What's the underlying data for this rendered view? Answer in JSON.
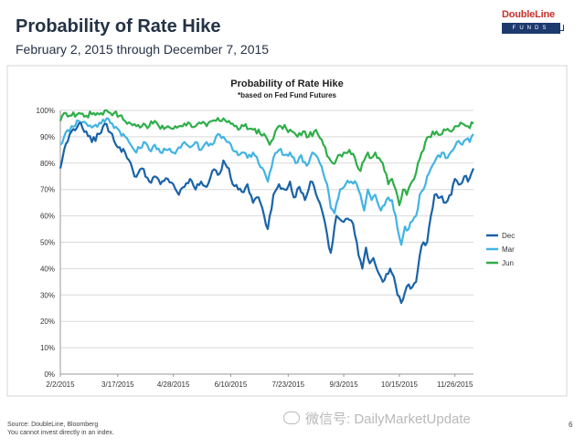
{
  "page": {
    "title": "Probability of Rate Hike",
    "subtitle": "February 2, 2015 through December 7, 2015",
    "logo_top": "DoubleLine",
    "logo_bottom": "FUNDS",
    "source": "Source: DoubleLine, Bloomberg",
    "disclaimer": "You cannot invest directly in an index.",
    "page_number": "6",
    "watermark": "微信号: DailyMarketUpdate"
  },
  "colors": {
    "dec": "#1a63a8",
    "mar": "#41b4e3",
    "jun": "#2fae49"
  },
  "chart_data": {
    "type": "line",
    "title": "Probability of Rate Hike",
    "subtitle": "*based on Fed Fund Futures",
    "xlabel": "",
    "ylabel": "",
    "ylim": [
      0,
      100
    ],
    "y_ticks": [
      "0%",
      "10%",
      "20%",
      "30%",
      "40%",
      "50%",
      "60%",
      "70%",
      "80%",
      "90%",
      "100%"
    ],
    "x_ticks": [
      "2/2/2015",
      "3/17/2015",
      "4/28/2015",
      "6/10/2015",
      "7/23/2015",
      "9/3/2015",
      "10/15/2015",
      "11/26/2015"
    ],
    "x_ticks_index": [
      0,
      31,
      61,
      92,
      123,
      153,
      183,
      213
    ],
    "x_count": 224,
    "grid": true,
    "legend": "right",
    "series": [
      {
        "name": "Dec",
        "key": "dec",
        "anchors": [
          [
            0,
            78
          ],
          [
            2,
            85
          ],
          [
            6,
            92
          ],
          [
            10,
            95
          ],
          [
            14,
            92
          ],
          [
            17,
            88
          ],
          [
            21,
            91
          ],
          [
            24,
            95
          ],
          [
            28,
            91
          ],
          [
            31,
            86
          ],
          [
            35,
            84
          ],
          [
            38,
            80
          ],
          [
            40,
            75
          ],
          [
            44,
            78
          ],
          [
            48,
            73
          ],
          [
            51,
            75
          ],
          [
            54,
            72
          ],
          [
            58,
            74
          ],
          [
            61,
            72
          ],
          [
            64,
            68
          ],
          [
            67,
            71
          ],
          [
            70,
            74
          ],
          [
            73,
            70
          ],
          [
            76,
            73
          ],
          [
            79,
            71
          ],
          [
            82,
            77
          ],
          [
            86,
            76
          ],
          [
            88,
            81
          ],
          [
            91,
            78
          ],
          [
            93,
            72
          ],
          [
            96,
            70
          ],
          [
            99,
            69
          ],
          [
            101,
            72
          ],
          [
            104,
            65
          ],
          [
            107,
            67
          ],
          [
            110,
            60
          ],
          [
            112,
            55
          ],
          [
            115,
            68
          ],
          [
            118,
            72
          ],
          [
            121,
            70
          ],
          [
            124,
            73
          ],
          [
            126,
            67
          ],
          [
            129,
            71
          ],
          [
            132,
            66
          ],
          [
            135,
            73
          ],
          [
            137,
            71
          ],
          [
            140,
            65
          ],
          [
            142,
            60
          ],
          [
            145,
            48
          ],
          [
            146,
            46
          ],
          [
            149,
            60
          ],
          [
            152,
            58
          ],
          [
            155,
            59
          ],
          [
            158,
            57
          ],
          [
            161,
            45
          ],
          [
            163,
            40
          ],
          [
            165,
            48
          ],
          [
            167,
            42
          ],
          [
            169,
            44
          ],
          [
            172,
            38
          ],
          [
            174,
            35
          ],
          [
            176,
            38
          ],
          [
            178,
            40
          ],
          [
            180,
            37
          ],
          [
            182,
            30
          ],
          [
            184,
            27
          ],
          [
            186,
            31
          ],
          [
            188,
            34
          ],
          [
            190,
            33
          ],
          [
            192,
            35
          ],
          [
            194,
            45
          ],
          [
            196,
            50
          ],
          [
            198,
            50
          ],
          [
            200,
            60
          ],
          [
            202,
            68
          ],
          [
            205,
            67
          ],
          [
            208,
            65
          ],
          [
            211,
            68
          ],
          [
            213,
            74
          ],
          [
            216,
            72
          ],
          [
            218,
            75
          ],
          [
            220,
            73
          ],
          [
            223,
            78
          ]
        ]
      },
      {
        "name": "Mar",
        "key": "mar",
        "anchors": [
          [
            0,
            87
          ],
          [
            2,
            90
          ],
          [
            6,
            94
          ],
          [
            10,
            96
          ],
          [
            14,
            95
          ],
          [
            18,
            94
          ],
          [
            22,
            95
          ],
          [
            25,
            97
          ],
          [
            28,
            95
          ],
          [
            31,
            93
          ],
          [
            35,
            90
          ],
          [
            38,
            87
          ],
          [
            41,
            84
          ],
          [
            45,
            88
          ],
          [
            48,
            85
          ],
          [
            51,
            87
          ],
          [
            54,
            84
          ],
          [
            58,
            85
          ],
          [
            61,
            84
          ],
          [
            64,
            86
          ],
          [
            67,
            88
          ],
          [
            70,
            86
          ],
          [
            73,
            88
          ],
          [
            76,
            85
          ],
          [
            79,
            88
          ],
          [
            82,
            87
          ],
          [
            85,
            91
          ],
          [
            88,
            90
          ],
          [
            91,
            88
          ],
          [
            93,
            85
          ],
          [
            96,
            83
          ],
          [
            99,
            84
          ],
          [
            101,
            82
          ],
          [
            104,
            84
          ],
          [
            107,
            80
          ],
          [
            110,
            77
          ],
          [
            112,
            73
          ],
          [
            115,
            82
          ],
          [
            118,
            85
          ],
          [
            121,
            83
          ],
          [
            124,
            84
          ],
          [
            127,
            80
          ],
          [
            130,
            83
          ],
          [
            133,
            79
          ],
          [
            136,
            84
          ],
          [
            139,
            82
          ],
          [
            142,
            76
          ],
          [
            144,
            72
          ],
          [
            146,
            63
          ],
          [
            148,
            61
          ],
          [
            151,
            70
          ],
          [
            154,
            72
          ],
          [
            157,
            73
          ],
          [
            160,
            72
          ],
          [
            162,
            68
          ],
          [
            164,
            62
          ],
          [
            166,
            70
          ],
          [
            168,
            66
          ],
          [
            170,
            68
          ],
          [
            173,
            62
          ],
          [
            175,
            64
          ],
          [
            177,
            67
          ],
          [
            179,
            66
          ],
          [
            181,
            60
          ],
          [
            183,
            52
          ],
          [
            184,
            49
          ],
          [
            186,
            56
          ],
          [
            188,
            55
          ],
          [
            190,
            58
          ],
          [
            192,
            60
          ],
          [
            194,
            68
          ],
          [
            196,
            70
          ],
          [
            198,
            75
          ],
          [
            200,
            78
          ],
          [
            203,
            82
          ],
          [
            206,
            84
          ],
          [
            209,
            82
          ],
          [
            212,
            85
          ],
          [
            214,
            88
          ],
          [
            217,
            87
          ],
          [
            219,
            89
          ],
          [
            221,
            88
          ],
          [
            223,
            91
          ]
        ]
      },
      {
        "name": "Jun",
        "key": "jun",
        "anchors": [
          [
            0,
            96
          ],
          [
            3,
            99
          ],
          [
            6,
            98
          ],
          [
            10,
            99
          ],
          [
            14,
            98
          ],
          [
            18,
            99
          ],
          [
            22,
            99
          ],
          [
            25,
            100
          ],
          [
            29,
            99
          ],
          [
            32,
            98
          ],
          [
            35,
            96
          ],
          [
            38,
            95
          ],
          [
            41,
            94
          ],
          [
            45,
            95
          ],
          [
            48,
            94
          ],
          [
            51,
            96
          ],
          [
            54,
            93
          ],
          [
            58,
            94
          ],
          [
            61,
            93
          ],
          [
            64,
            94
          ],
          [
            67,
            95
          ],
          [
            70,
            95
          ],
          [
            73,
            94
          ],
          [
            76,
            95
          ],
          [
            79,
            94
          ],
          [
            82,
            96
          ],
          [
            86,
            96
          ],
          [
            88,
            97
          ],
          [
            91,
            96
          ],
          [
            94,
            94
          ],
          [
            97,
            93
          ],
          [
            99,
            94
          ],
          [
            102,
            93
          ],
          [
            105,
            93
          ],
          [
            108,
            91
          ],
          [
            111,
            90
          ],
          [
            113,
            87
          ],
          [
            116,
            92
          ],
          [
            119,
            94
          ],
          [
            122,
            93
          ],
          [
            125,
            92
          ],
          [
            128,
            90
          ],
          [
            131,
            92
          ],
          [
            134,
            90
          ],
          [
            137,
            92
          ],
          [
            139,
            91
          ],
          [
            142,
            87
          ],
          [
            145,
            82
          ],
          [
            147,
            80
          ],
          [
            150,
            83
          ],
          [
            153,
            84
          ],
          [
            156,
            85
          ],
          [
            159,
            82
          ],
          [
            162,
            77
          ],
          [
            164,
            81
          ],
          [
            166,
            84
          ],
          [
            168,
            82
          ],
          [
            170,
            84
          ],
          [
            172,
            82
          ],
          [
            174,
            80
          ],
          [
            177,
            72
          ],
          [
            179,
            74
          ],
          [
            181,
            70
          ],
          [
            183,
            64
          ],
          [
            185,
            70
          ],
          [
            187,
            68
          ],
          [
            189,
            72
          ],
          [
            191,
            74
          ],
          [
            193,
            80
          ],
          [
            195,
            84
          ],
          [
            197,
            88
          ],
          [
            199,
            90
          ],
          [
            201,
            92
          ],
          [
            203,
            92
          ],
          [
            206,
            91
          ],
          [
            209,
            93
          ],
          [
            211,
            92
          ],
          [
            213,
            94
          ],
          [
            215,
            94
          ],
          [
            217,
            95
          ],
          [
            220,
            94
          ],
          [
            223,
            95
          ]
        ]
      }
    ]
  }
}
